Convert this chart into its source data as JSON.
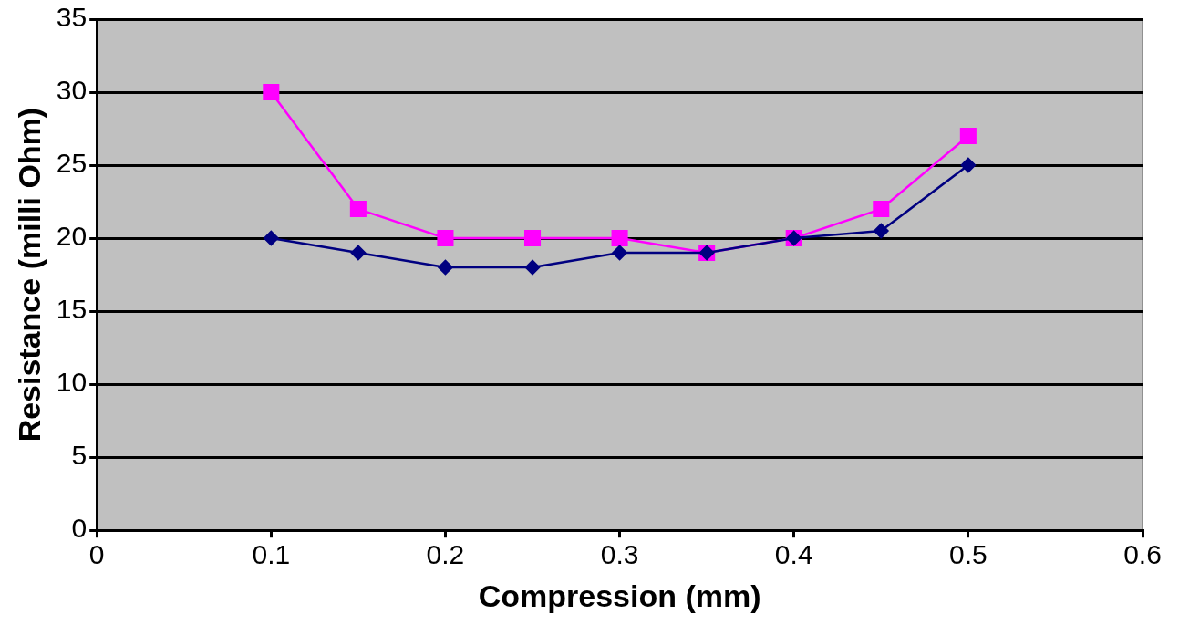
{
  "chart_data": {
    "type": "line",
    "xlabel": "Compression (mm)",
    "ylabel": "Resistance (milli Ohm)",
    "x": [
      0.1,
      0.15,
      0.2,
      0.25,
      0.3,
      0.35,
      0.4,
      0.45,
      0.5
    ],
    "series": [
      {
        "color": "#000080",
        "marker": "diamond",
        "values": [
          20,
          19,
          18,
          18,
          19,
          19,
          20,
          20.5,
          25
        ]
      },
      {
        "color": "#ff00ff",
        "marker": "square",
        "values": [
          30,
          22,
          20,
          20,
          20,
          19,
          20,
          22,
          27
        ]
      }
    ],
    "xlim": [
      0,
      0.6
    ],
    "xticks": [
      0,
      0.1,
      0.2,
      0.3,
      0.4,
      0.5,
      0.6
    ],
    "ylim": [
      0,
      35
    ],
    "yticks": [
      0,
      5,
      10,
      15,
      20,
      25,
      30,
      35
    ],
    "grid": "y",
    "legend": false
  }
}
